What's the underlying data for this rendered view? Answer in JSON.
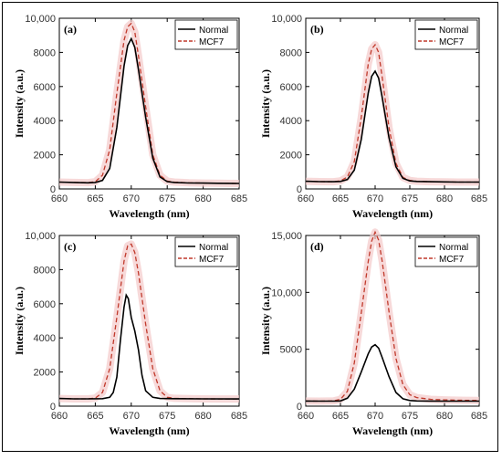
{
  "colors": {
    "normal": "#000000",
    "mcf7": "#c0392b",
    "mcf7_glow": "#f3c9c9",
    "axis": "#000000"
  },
  "chart_data": [
    {
      "type": "line",
      "panel_label": "(a)",
      "xlabel": "Wavelength (nm)",
      "ylabel": "Intensity (a.u.)",
      "xlim": [
        660,
        685
      ],
      "ylim": [
        0,
        10000
      ],
      "xticks": [
        660,
        665,
        670,
        675,
        680,
        685
      ],
      "yticks": [
        0,
        2000,
        4000,
        6000,
        8000,
        10000
      ],
      "ytick_labels": [
        "0",
        "2000",
        "4000",
        "6000",
        "8000",
        "10,000"
      ],
      "legend_position": "top-right",
      "series": [
        {
          "name": "Normal",
          "style": "solid",
          "x": [
            660,
            662,
            664,
            665,
            666,
            667,
            668,
            669,
            669.5,
            670,
            670.5,
            671,
            672,
            673,
            674,
            675,
            676,
            678,
            680,
            682,
            685
          ],
          "y": [
            400,
            380,
            360,
            380,
            500,
            1200,
            3600,
            7200,
            8400,
            8800,
            8300,
            7000,
            4200,
            1800,
            700,
            430,
            380,
            350,
            340,
            330,
            320
          ]
        },
        {
          "name": "MCF7",
          "style": "dashed",
          "x": [
            660,
            662,
            664,
            665,
            666,
            667,
            668,
            669,
            669.5,
            670,
            670.5,
            671,
            672,
            673,
            674,
            675,
            676,
            678,
            680,
            682,
            685
          ],
          "y": [
            400,
            380,
            370,
            420,
            800,
            2300,
            5600,
            8700,
            9500,
            9700,
            9200,
            7800,
            4800,
            2000,
            800,
            460,
            400,
            360,
            340,
            330,
            320
          ]
        }
      ]
    },
    {
      "type": "line",
      "panel_label": "(b)",
      "xlabel": "Wavelength (nm)",
      "ylabel": "Intensity (a.u.)",
      "xlim": [
        660,
        685
      ],
      "ylim": [
        0,
        10000
      ],
      "xticks": [
        660,
        665,
        670,
        675,
        680,
        685
      ],
      "yticks": [
        0,
        2000,
        4000,
        6000,
        8000,
        10000
      ],
      "ytick_labels": [
        "0",
        "2000",
        "4000",
        "6000",
        "8000",
        "10,000"
      ],
      "legend_position": "top-right",
      "series": [
        {
          "name": "Normal",
          "style": "solid",
          "x": [
            660,
            662,
            664,
            665,
            666,
            667,
            668,
            669,
            669.5,
            670,
            670.5,
            671,
            672,
            673,
            674,
            675,
            676,
            678,
            680,
            682,
            685
          ],
          "y": [
            450,
            430,
            420,
            440,
            550,
            1100,
            2900,
            5600,
            6600,
            6900,
            6500,
            5400,
            3000,
            1300,
            620,
            470,
            440,
            420,
            410,
            400,
            400
          ]
        },
        {
          "name": "MCF7",
          "style": "dashed",
          "x": [
            660,
            662,
            664,
            665,
            666,
            667,
            668,
            669,
            669.5,
            670,
            670.5,
            671,
            672,
            673,
            674,
            675,
            676,
            678,
            680,
            682,
            685
          ],
          "y": [
            450,
            430,
            420,
            470,
            700,
            1600,
            4200,
            7300,
            8200,
            8450,
            8000,
            6600,
            3600,
            1500,
            680,
            500,
            450,
            420,
            410,
            400,
            400
          ]
        }
      ]
    },
    {
      "type": "line",
      "panel_label": "(c)",
      "xlabel": "Wavelength (nm)",
      "ylabel": "Intensity (a.u.)",
      "xlim": [
        660,
        685
      ],
      "ylim": [
        0,
        10000
      ],
      "xticks": [
        660,
        665,
        670,
        675,
        680,
        685
      ],
      "yticks": [
        0,
        2000,
        4000,
        6000,
        8000,
        10000
      ],
      "ytick_labels": [
        "0",
        "2000",
        "4000",
        "6000",
        "8000",
        "10,000"
      ],
      "legend_position": "top-right",
      "series": [
        {
          "name": "Normal",
          "style": "solid",
          "x": [
            660,
            662,
            664,
            666,
            667,
            667.5,
            668,
            668.5,
            669,
            669.3,
            669.6,
            670,
            670.5,
            671,
            671.5,
            672,
            673,
            674,
            676,
            680,
            685
          ],
          "y": [
            450,
            430,
            430,
            440,
            520,
            800,
            1700,
            3900,
            5800,
            6500,
            6300,
            5200,
            4400,
            3300,
            1800,
            900,
            520,
            450,
            440,
            430,
            420
          ]
        },
        {
          "name": "MCF7",
          "style": "dashed",
          "x": [
            660,
            662,
            664,
            665,
            666,
            667,
            668,
            669,
            669.5,
            670,
            670.5,
            671,
            672,
            673,
            674,
            675,
            676,
            678,
            680,
            682,
            685
          ],
          "y": [
            450,
            430,
            430,
            470,
            800,
            2200,
            5200,
            8500,
            9400,
            9500,
            9000,
            7800,
            4800,
            2200,
            900,
            520,
            460,
            440,
            430,
            420,
            420
          ]
        }
      ]
    },
    {
      "type": "line",
      "panel_label": "(d)",
      "xlabel": "Wavelength (nm)",
      "ylabel": "Intensity (a.u.)",
      "xlim": [
        660,
        685
      ],
      "ylim": [
        0,
        15000
      ],
      "xticks": [
        660,
        665,
        670,
        675,
        680,
        685
      ],
      "yticks": [
        0,
        5000,
        10000,
        15000
      ],
      "ytick_labels": [
        "0",
        "5000",
        "10,000",
        "15,000"
      ],
      "legend_position": "top-right",
      "series": [
        {
          "name": "Normal",
          "style": "solid",
          "x": [
            660,
            662,
            664,
            665,
            666,
            667,
            668,
            669,
            669.5,
            670,
            670.5,
            671,
            672,
            673,
            674,
            675,
            676,
            678,
            680,
            682,
            685
          ],
          "y": [
            450,
            440,
            440,
            460,
            700,
            1500,
            3000,
            4600,
            5200,
            5400,
            5100,
            4300,
            2600,
            1200,
            650,
            500,
            460,
            450,
            440,
            440,
            440
          ]
        },
        {
          "name": "MCF7",
          "style": "dashed",
          "x": [
            660,
            662,
            664,
            665,
            666,
            667,
            668,
            669,
            669.5,
            670,
            670.5,
            671,
            672,
            673,
            674,
            675,
            676,
            678,
            680,
            682,
            685
          ],
          "y": [
            450,
            440,
            460,
            600,
            1300,
            3800,
            8200,
            12700,
            14500,
            15300,
            14600,
            12800,
            8300,
            4200,
            1900,
            1000,
            750,
            600,
            550,
            520,
            500
          ]
        }
      ]
    }
  ]
}
